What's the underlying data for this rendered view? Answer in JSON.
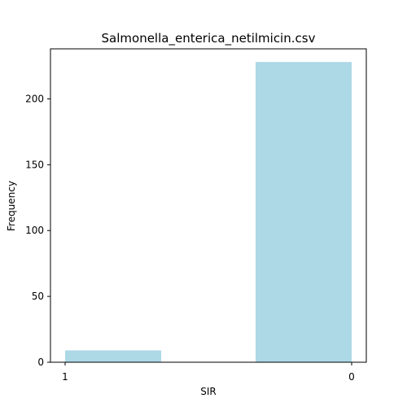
{
  "chart_data": {
    "type": "bar",
    "title": "Salmonella_enterica_netilmicin.csv",
    "xlabel": "SIR",
    "ylabel": "Frequency",
    "categories": [
      "1",
      "0"
    ],
    "values": [
      9,
      228
    ],
    "ylim": [
      0,
      238
    ],
    "yticks": [
      "0",
      "50",
      "100",
      "150",
      "200"
    ],
    "grid": false,
    "bar_color": "#add8e6"
  }
}
